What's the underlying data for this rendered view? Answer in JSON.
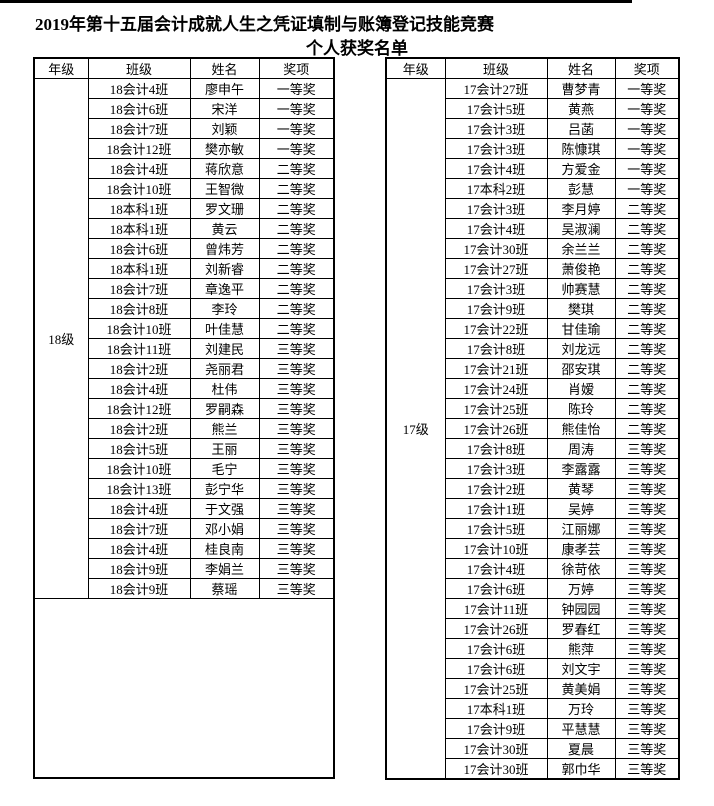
{
  "title": {
    "line1": "2019年第十五届会计成就人生之凭证填制与账簿登记技能竞赛",
    "line2": "个人获奖名单"
  },
  "table_headers": [
    "年级",
    "班级",
    "姓名",
    "奖项"
  ],
  "left_table": {
    "grade": "18级",
    "rows": [
      [
        "18会计4班",
        "廖申午",
        "一等奖"
      ],
      [
        "18会计6班",
        "宋洋",
        "一等奖"
      ],
      [
        "18会计7班",
        "刘颖",
        "一等奖"
      ],
      [
        "18会计12班",
        "樊亦敏",
        "一等奖"
      ],
      [
        "18会计4班",
        "蒋欣意",
        "二等奖"
      ],
      [
        "18会计10班",
        "王智微",
        "二等奖"
      ],
      [
        "18本科1班",
        "罗文珊",
        "二等奖"
      ],
      [
        "18本科1班",
        "黄云",
        "二等奖"
      ],
      [
        "18会计6班",
        "曾炜芳",
        "二等奖"
      ],
      [
        "18本科1班",
        "刘新睿",
        "二等奖"
      ],
      [
        "18会计7班",
        "章逸平",
        "二等奖"
      ],
      [
        "18会计8班",
        "李玲",
        "二等奖"
      ],
      [
        "18会计10班",
        "叶佳慧",
        "二等奖"
      ],
      [
        "18会计11班",
        "刘建民",
        "三等奖"
      ],
      [
        "18会计2班",
        "尧丽君",
        "三等奖"
      ],
      [
        "18会计4班",
        "杜伟",
        "三等奖"
      ],
      [
        "18会计12班",
        "罗嗣森",
        "三等奖"
      ],
      [
        "18会计2班",
        "熊兰",
        "三等奖"
      ],
      [
        "18会计5班",
        "王丽",
        "三等奖"
      ],
      [
        "18会计10班",
        "毛宁",
        "三等奖"
      ],
      [
        "18会计13班",
        "彭宁华",
        "三等奖"
      ],
      [
        "18会计4班",
        "于文强",
        "三等奖"
      ],
      [
        "18会计7班",
        "邓小娟",
        "三等奖"
      ],
      [
        "18会计4班",
        "桂良南",
        "三等奖"
      ],
      [
        "18会计9班",
        "李娟兰",
        "三等奖"
      ],
      [
        "18会计9班",
        "蔡瑶",
        "三等奖"
      ]
    ]
  },
  "right_table": {
    "grade": "17级",
    "rows": [
      [
        "17会计27班",
        "曹梦青",
        "一等奖"
      ],
      [
        "17会计5班",
        "黄燕",
        "一等奖"
      ],
      [
        "17会计3班",
        "吕菡",
        "一等奖"
      ],
      [
        "17会计3班",
        "陈慷琪",
        "一等奖"
      ],
      [
        "17会计4班",
        "方爱金",
        "一等奖"
      ],
      [
        "17本科2班",
        "彭慧",
        "一等奖"
      ],
      [
        "17会计3班",
        "李月婷",
        "二等奖"
      ],
      [
        "17会计4班",
        "吴淑澜",
        "二等奖"
      ],
      [
        "17会计30班",
        "余兰兰",
        "二等奖"
      ],
      [
        "17会计27班",
        "萧俊艳",
        "二等奖"
      ],
      [
        "17会计3班",
        "帅赛慧",
        "二等奖"
      ],
      [
        "17会计9班",
        "樊琪",
        "二等奖"
      ],
      [
        "17会计22班",
        "甘佳瑜",
        "二等奖"
      ],
      [
        "17会计8班",
        "刘龙远",
        "二等奖"
      ],
      [
        "17会计21班",
        "邵安琪",
        "二等奖"
      ],
      [
        "17会计24班",
        "肖嫒",
        "二等奖"
      ],
      [
        "17会计25班",
        "陈玲",
        "二等奖"
      ],
      [
        "17会计26班",
        "熊佳怡",
        "二等奖"
      ],
      [
        "17会计8班",
        "周涛",
        "三等奖"
      ],
      [
        "17会计3班",
        "李露露",
        "三等奖"
      ],
      [
        "17会计2班",
        "黄琴",
        "三等奖"
      ],
      [
        "17会计1班",
        "吴婷",
        "三等奖"
      ],
      [
        "17会计5班",
        "江丽娜",
        "三等奖"
      ],
      [
        "17会计10班",
        "康孝芸",
        "三等奖"
      ],
      [
        "17会计4班",
        "徐苛依",
        "三等奖"
      ],
      [
        "17会计6班",
        "万婷",
        "三等奖"
      ],
      [
        "17会计11班",
        "钟园园",
        "三等奖"
      ],
      [
        "17会计26班",
        "罗春红",
        "三等奖"
      ],
      [
        "17会计6班",
        "熊萍",
        "三等奖"
      ],
      [
        "17会计6班",
        "刘文宇",
        "三等奖"
      ],
      [
        "17会计25班",
        "黄美娟",
        "三等奖"
      ],
      [
        "17本科1班",
        "万玲",
        "三等奖"
      ],
      [
        "17会计9班",
        "平慧慧",
        "三等奖"
      ],
      [
        "17会计30班",
        "夏晨",
        "三等奖"
      ],
      [
        "17会计30班",
        "郭巾华",
        "三等奖"
      ]
    ]
  }
}
